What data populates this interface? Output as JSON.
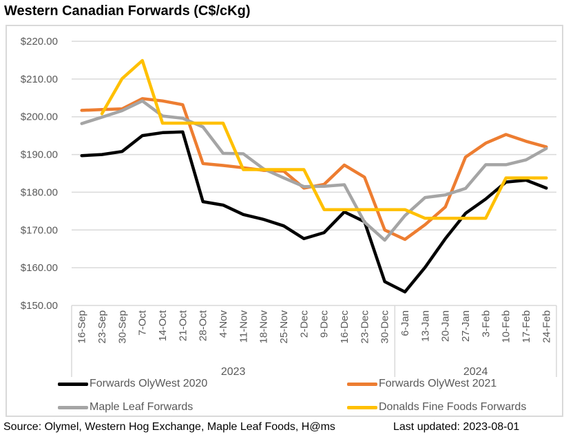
{
  "chart_data": {
    "type": "line",
    "title": "Western Canadian Forwards (C$/cKg)",
    "xlabel": "",
    "ylabel": "",
    "ylim": [
      150,
      220
    ],
    "yticks": [
      150,
      160,
      170,
      180,
      190,
      200,
      210,
      220
    ],
    "ytick_labels": [
      "$150.00",
      "$160.00",
      "$170.00",
      "$180.00",
      "$190.00",
      "$200.00",
      "$210.00",
      "$220.00"
    ],
    "grid": true,
    "categories": [
      "16-Sep",
      "23-Sep",
      "30-Sep",
      "7-Oct",
      "14-Oct",
      "21-Oct",
      "28-Oct",
      "4-Nov",
      "11-Nov",
      "18-Nov",
      "25-Nov",
      "2-Dec",
      "9-Dec",
      "16-Dec",
      "23-Dec",
      "30-Dec",
      "6-Jan",
      "13-Jan",
      "20-Jan",
      "27-Jan",
      "3-Feb",
      "10-Feb",
      "17-Feb",
      "24-Feb"
    ],
    "year_groups": [
      {
        "label": "2023",
        "count": 16
      },
      {
        "label": "2024",
        "count": 8
      }
    ],
    "legend_position": "bottom",
    "series": [
      {
        "name": "Forwards OlyWest 2020",
        "color": "#000000",
        "values": [
          189.7,
          190.0,
          190.8,
          195.0,
          195.8,
          196.0,
          177.5,
          176.6,
          174.1,
          172.8,
          171.1,
          167.7,
          169.3,
          174.8,
          172.2,
          156.3,
          153.6,
          160.1,
          167.7,
          174.4,
          178.2,
          182.7,
          183.2,
          181.1
        ]
      },
      {
        "name": "Forwards OlyWest 2021",
        "color": "#ed7d31",
        "values": [
          201.7,
          201.9,
          202.1,
          204.8,
          204.2,
          203.2,
          187.6,
          187.1,
          186.5,
          185.8,
          185.6,
          181.1,
          182.1,
          187.2,
          184.0,
          170.0,
          167.5,
          171.4,
          176.1,
          189.3,
          193.0,
          195.3,
          193.5,
          192.0
        ]
      },
      {
        "name": "Maple Leaf Forwards",
        "color": "#a5a5a5",
        "values": [
          198.2,
          199.9,
          201.6,
          204.2,
          200.2,
          199.6,
          197.3,
          190.3,
          190.2,
          186.2,
          183.8,
          181.5,
          181.6,
          182.0,
          172.1,
          167.3,
          173.8,
          178.6,
          179.3,
          181.0,
          187.3,
          187.3,
          188.6,
          191.6
        ]
      },
      {
        "name": "Donalds Fine Foods Forwards",
        "color": "#ffc000",
        "values": [
          null,
          200.8,
          210.1,
          214.9,
          198.3,
          198.3,
          198.3,
          198.3,
          186.0,
          186.0,
          186.0,
          186.0,
          175.4,
          175.4,
          175.4,
          175.4,
          175.4,
          173.1,
          173.1,
          173.1,
          173.1,
          183.8,
          183.8,
          183.8
        ]
      }
    ]
  },
  "header": {
    "title": "Western Canadian Forwards (C$/cKg)"
  },
  "footer": {
    "source": "Source: Olymel, Western Hog Exchange, Maple Leaf Foods, H@ms",
    "last_updated": "Last updated:  2023-08-01"
  }
}
